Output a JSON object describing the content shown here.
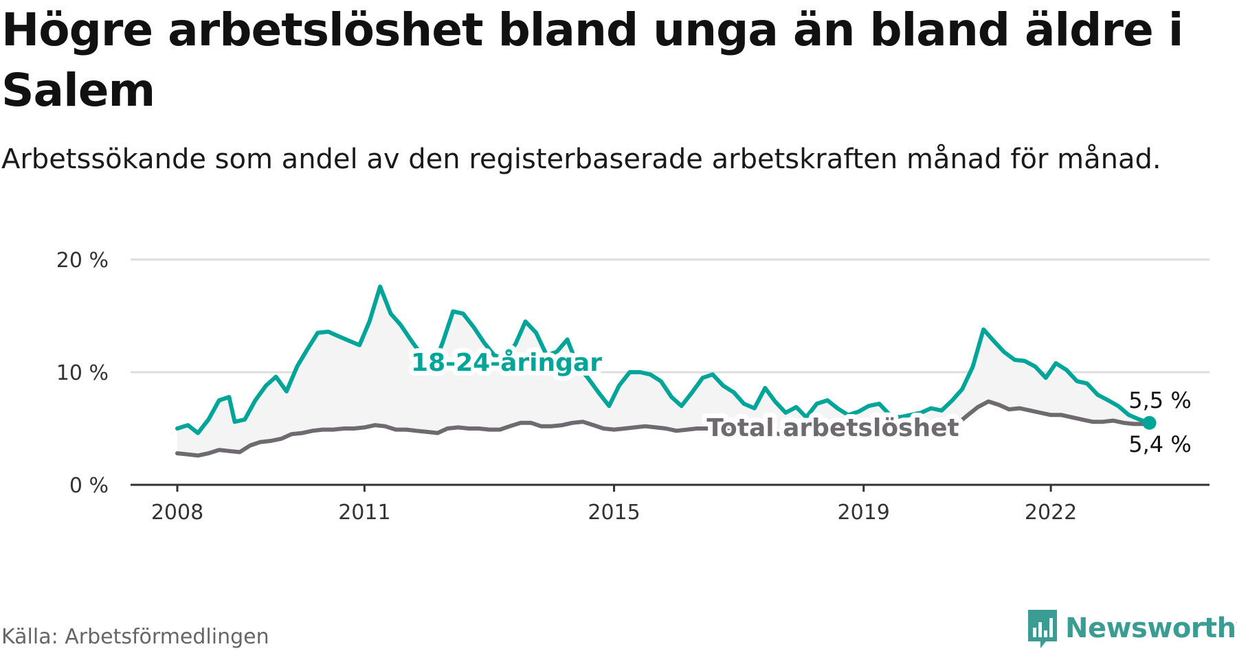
{
  "title": "Högre arbetslöshet bland unga än bland äldre i Salem",
  "subtitle": "Arbetssökande som andel av den registerbaserade arbetskraften månad för månad.",
  "source": "Källa: Arbetsförmedlingen",
  "brand": "Newsworthy",
  "colors": {
    "youth": "#00a59a",
    "total": "#6e6a70",
    "band": "#f4f4f4",
    "grid": "#dddddd",
    "axis": "#333333",
    "brand": "#3a9c92"
  },
  "chart_data": {
    "type": "line",
    "x_range": [
      2008.0,
      2023.75
    ],
    "ylim": [
      0,
      20
    ],
    "y_ticks": [
      {
        "value": 0,
        "label": "0 %"
      },
      {
        "value": 10,
        "label": "10 %"
      },
      {
        "value": 20,
        "label": "20 %"
      }
    ],
    "x_ticks": [
      {
        "value": 2008,
        "label": "2008"
      },
      {
        "value": 2011,
        "label": "2011"
      },
      {
        "value": 2015,
        "label": "2015"
      },
      {
        "value": 2019,
        "label": "2019"
      },
      {
        "value": 2022,
        "label": "2022"
      }
    ],
    "grid": true,
    "series": [
      {
        "name": "18-24-åringar",
        "end_label": "5,5 %",
        "points": [
          [
            2008.0,
            5.0
          ],
          [
            2008.17,
            5.3
          ],
          [
            2008.33,
            4.6
          ],
          [
            2008.5,
            5.8
          ],
          [
            2008.67,
            7.5
          ],
          [
            2008.83,
            7.8
          ],
          [
            2008.92,
            5.6
          ],
          [
            2009.08,
            5.8
          ],
          [
            2009.25,
            7.5
          ],
          [
            2009.42,
            8.8
          ],
          [
            2009.58,
            9.6
          ],
          [
            2009.75,
            8.3
          ],
          [
            2009.92,
            10.5
          ],
          [
            2010.08,
            12.0
          ],
          [
            2010.25,
            13.5
          ],
          [
            2010.42,
            13.6
          ],
          [
            2010.58,
            13.2
          ],
          [
            2010.75,
            12.8
          ],
          [
            2010.92,
            12.4
          ],
          [
            2011.08,
            14.5
          ],
          [
            2011.25,
            17.6
          ],
          [
            2011.42,
            15.2
          ],
          [
            2011.58,
            14.2
          ],
          [
            2011.75,
            12.8
          ],
          [
            2011.92,
            11.5
          ],
          [
            2012.08,
            10.2
          ],
          [
            2012.25,
            12.6
          ],
          [
            2012.42,
            15.4
          ],
          [
            2012.58,
            15.2
          ],
          [
            2012.75,
            14.0
          ],
          [
            2012.92,
            12.6
          ],
          [
            2013.08,
            11.5
          ],
          [
            2013.25,
            11.2
          ],
          [
            2013.42,
            12.5
          ],
          [
            2013.58,
            14.5
          ],
          [
            2013.75,
            13.5
          ],
          [
            2013.92,
            11.5
          ],
          [
            2014.08,
            11.8
          ],
          [
            2014.25,
            12.9
          ],
          [
            2014.42,
            10.5
          ],
          [
            2014.58,
            9.5
          ],
          [
            2014.75,
            8.2
          ],
          [
            2014.92,
            7.0
          ],
          [
            2015.08,
            8.8
          ],
          [
            2015.25,
            10.0
          ],
          [
            2015.42,
            10.0
          ],
          [
            2015.58,
            9.8
          ],
          [
            2015.75,
            9.2
          ],
          [
            2015.92,
            7.8
          ],
          [
            2016.08,
            7.0
          ],
          [
            2016.25,
            8.2
          ],
          [
            2016.42,
            9.5
          ],
          [
            2016.58,
            9.8
          ],
          [
            2016.75,
            8.8
          ],
          [
            2016.92,
            8.2
          ],
          [
            2017.08,
            7.2
          ],
          [
            2017.25,
            6.8
          ],
          [
            2017.42,
            8.6
          ],
          [
            2017.58,
            7.4
          ],
          [
            2017.75,
            6.4
          ],
          [
            2017.92,
            6.9
          ],
          [
            2018.08,
            6.0
          ],
          [
            2018.25,
            7.2
          ],
          [
            2018.42,
            7.5
          ],
          [
            2018.58,
            6.8
          ],
          [
            2018.75,
            6.2
          ],
          [
            2018.92,
            6.5
          ],
          [
            2019.08,
            7.0
          ],
          [
            2019.25,
            7.2
          ],
          [
            2019.42,
            6.2
          ],
          [
            2019.58,
            6.0
          ],
          [
            2019.75,
            6.2
          ],
          [
            2019.92,
            6.4
          ],
          [
            2020.08,
            6.8
          ],
          [
            2020.25,
            6.6
          ],
          [
            2020.42,
            7.5
          ],
          [
            2020.58,
            8.5
          ],
          [
            2020.75,
            10.5
          ],
          [
            2020.92,
            13.8
          ],
          [
            2021.08,
            12.8
          ],
          [
            2021.25,
            11.8
          ],
          [
            2021.42,
            11.1
          ],
          [
            2021.58,
            11.0
          ],
          [
            2021.75,
            10.5
          ],
          [
            2021.92,
            9.5
          ],
          [
            2022.08,
            10.8
          ],
          [
            2022.25,
            10.2
          ],
          [
            2022.42,
            9.2
          ],
          [
            2022.58,
            9.0
          ],
          [
            2022.75,
            8.0
          ],
          [
            2022.92,
            7.5
          ],
          [
            2023.08,
            7.0
          ],
          [
            2023.25,
            6.2
          ],
          [
            2023.42,
            5.8
          ],
          [
            2023.58,
            5.5
          ]
        ]
      },
      {
        "name": "Total arbetslöshet",
        "end_label": "5,4 %",
        "points": [
          [
            2008.0,
            2.8
          ],
          [
            2008.17,
            2.7
          ],
          [
            2008.33,
            2.6
          ],
          [
            2008.5,
            2.8
          ],
          [
            2008.67,
            3.1
          ],
          [
            2008.83,
            3.0
          ],
          [
            2009.0,
            2.9
          ],
          [
            2009.17,
            3.5
          ],
          [
            2009.33,
            3.8
          ],
          [
            2009.5,
            3.9
          ],
          [
            2009.67,
            4.1
          ],
          [
            2009.83,
            4.5
          ],
          [
            2010.0,
            4.6
          ],
          [
            2010.17,
            4.8
          ],
          [
            2010.33,
            4.9
          ],
          [
            2010.5,
            4.9
          ],
          [
            2010.67,
            5.0
          ],
          [
            2010.83,
            5.0
          ],
          [
            2011.0,
            5.1
          ],
          [
            2011.17,
            5.3
          ],
          [
            2011.33,
            5.2
          ],
          [
            2011.5,
            4.9
          ],
          [
            2011.67,
            4.9
          ],
          [
            2011.83,
            4.8
          ],
          [
            2012.0,
            4.7
          ],
          [
            2012.17,
            4.6
          ],
          [
            2012.33,
            5.0
          ],
          [
            2012.5,
            5.1
          ],
          [
            2012.67,
            5.0
          ],
          [
            2012.83,
            5.0
          ],
          [
            2013.0,
            4.9
          ],
          [
            2013.17,
            4.9
          ],
          [
            2013.33,
            5.2
          ],
          [
            2013.5,
            5.5
          ],
          [
            2013.67,
            5.5
          ],
          [
            2013.83,
            5.2
          ],
          [
            2014.0,
            5.2
          ],
          [
            2014.17,
            5.3
          ],
          [
            2014.33,
            5.5
          ],
          [
            2014.5,
            5.6
          ],
          [
            2014.67,
            5.3
          ],
          [
            2014.83,
            5.0
          ],
          [
            2015.0,
            4.9
          ],
          [
            2015.17,
            5.0
          ],
          [
            2015.33,
            5.1
          ],
          [
            2015.5,
            5.2
          ],
          [
            2015.67,
            5.1
          ],
          [
            2015.83,
            5.0
          ],
          [
            2016.0,
            4.8
          ],
          [
            2016.17,
            4.9
          ],
          [
            2016.33,
            5.0
          ],
          [
            2016.5,
            5.0
          ],
          [
            2016.67,
            4.9
          ],
          [
            2016.83,
            4.8
          ],
          [
            2017.0,
            4.6
          ],
          [
            2017.17,
            4.5
          ],
          [
            2017.33,
            4.6
          ],
          [
            2017.5,
            4.6
          ],
          [
            2017.67,
            4.5
          ],
          [
            2017.83,
            4.4
          ],
          [
            2018.0,
            4.4
          ],
          [
            2018.17,
            4.5
          ],
          [
            2018.33,
            4.5
          ],
          [
            2018.5,
            4.4
          ],
          [
            2018.67,
            4.4
          ],
          [
            2018.83,
            4.4
          ],
          [
            2019.0,
            4.5
          ],
          [
            2019.17,
            4.6
          ],
          [
            2019.33,
            4.6
          ],
          [
            2019.5,
            4.7
          ],
          [
            2019.67,
            4.8
          ],
          [
            2019.83,
            4.9
          ],
          [
            2020.0,
            5.0
          ],
          [
            2020.17,
            5.1
          ],
          [
            2020.33,
            5.2
          ],
          [
            2020.5,
            5.4
          ],
          [
            2020.67,
            6.2
          ],
          [
            2020.83,
            6.9
          ],
          [
            2021.0,
            7.4
          ],
          [
            2021.17,
            7.1
          ],
          [
            2021.33,
            6.7
          ],
          [
            2021.5,
            6.8
          ],
          [
            2021.67,
            6.6
          ],
          [
            2021.83,
            6.4
          ],
          [
            2022.0,
            6.2
          ],
          [
            2022.17,
            6.2
          ],
          [
            2022.33,
            6.0
          ],
          [
            2022.5,
            5.8
          ],
          [
            2022.67,
            5.6
          ],
          [
            2022.83,
            5.6
          ],
          [
            2023.0,
            5.7
          ],
          [
            2023.17,
            5.5
          ],
          [
            2023.33,
            5.4
          ],
          [
            2023.5,
            5.4
          ],
          [
            2023.58,
            5.4
          ]
        ]
      }
    ]
  }
}
